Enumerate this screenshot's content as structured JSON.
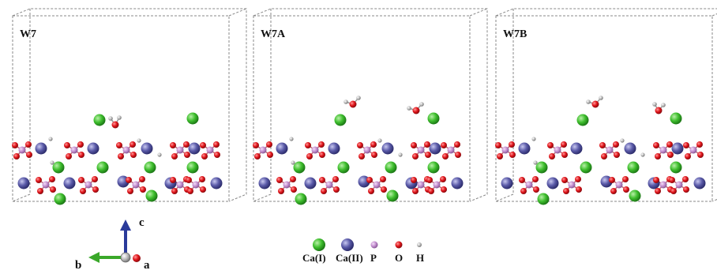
{
  "panels": [
    {
      "id": "w7",
      "label": "W7",
      "water": []
    },
    {
      "id": "w7a",
      "label": "W7A",
      "water": [
        "tilted",
        "tilted"
      ]
    },
    {
      "id": "w7b",
      "label": "W7B",
      "water": [
        "tilted",
        "upright"
      ]
    }
  ],
  "axes": {
    "c": "c",
    "b": "b",
    "a": "a"
  },
  "legend": [
    {
      "key": "ca1",
      "label": "Ca(I)",
      "color": "#3fbf2e"
    },
    {
      "key": "ca2",
      "label": "Ca(II)",
      "color": "#5a5aa8"
    },
    {
      "key": "p",
      "label": "P",
      "color": "#c48fd0"
    },
    {
      "key": "o",
      "label": "O",
      "color": "#e0141a"
    },
    {
      "key": "h",
      "label": "H",
      "color": "#b8b8b8"
    }
  ],
  "colors": {
    "ca1": "#3fbf2e",
    "ca2": "#5a5aa8",
    "p": "#c48fd0",
    "o": "#e0141a",
    "h": "#b8b8b8",
    "bond": "#c06a7a",
    "box": "#888888",
    "axis_c": "#2a3a9a",
    "axis_b": "#3aa82a",
    "axis_a": "#e0141a"
  }
}
